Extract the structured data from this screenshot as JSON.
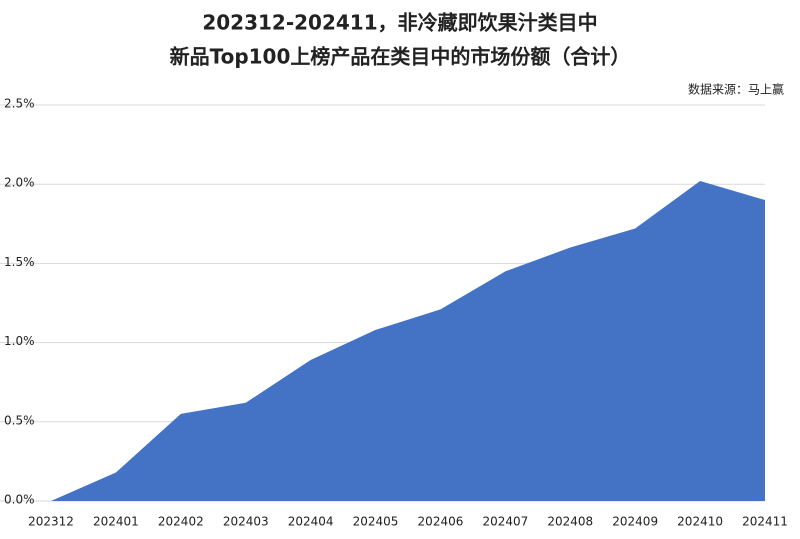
{
  "chart_data": {
    "type": "area",
    "title": [
      "202312-202411，非冷藏即饮果汁类目中",
      "新品Top100上榜产品在类目中的市场份额（合计）"
    ],
    "source": "数据来源：马上赢",
    "categories": [
      "202312",
      "202401",
      "202402",
      "202403",
      "202404",
      "202405",
      "202406",
      "202407",
      "202408",
      "202409",
      "202410",
      "202411"
    ],
    "values": [
      0,
      0.18,
      0.55,
      0.62,
      0.89,
      1.08,
      1.21,
      1.45,
      1.6,
      1.72,
      2.02,
      1.9
    ],
    "color": "#4472c4",
    "ylim": [
      0,
      2.5
    ],
    "yticks": [
      {
        "value": 0,
        "label": "0.0%"
      },
      {
        "value": 0.5,
        "label": "0.5%"
      },
      {
        "value": 1,
        "label": "1.0%"
      },
      {
        "value": 1.5,
        "label": "1.5%"
      },
      {
        "value": 2,
        "label": "2.0%"
      },
      {
        "value": 2.5,
        "label": "2.5%"
      }
    ],
    "grid": true
  }
}
